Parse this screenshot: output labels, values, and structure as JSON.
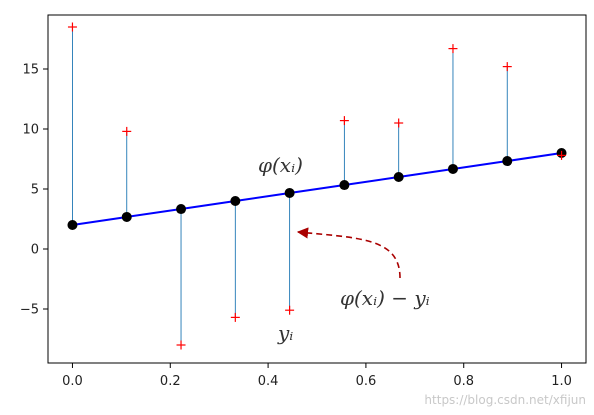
{
  "chart_data": {
    "type": "scatter",
    "x": [
      0.0,
      0.111,
      0.222,
      0.333,
      0.444,
      0.556,
      0.667,
      0.778,
      0.889,
      1.0
    ],
    "fit_values": [
      2.0,
      2.67,
      3.33,
      4.0,
      4.67,
      5.33,
      6.0,
      6.67,
      7.33,
      8.0
    ],
    "observed_values": [
      18.5,
      9.8,
      -8.0,
      -5.7,
      -5.1,
      10.7,
      10.5,
      16.7,
      15.2,
      7.8
    ],
    "xlim": [
      -0.05,
      1.05
    ],
    "ylim": [
      -9.5,
      19.5
    ],
    "xticks": [
      "0.0",
      "0.2",
      "0.4",
      "0.6",
      "0.8",
      "1.0"
    ],
    "yticks": [
      "−5",
      "0",
      "5",
      "10",
      "15"
    ],
    "grid": false,
    "colors": {
      "fit_line": "#0000ff",
      "fit_points": "#000000",
      "observed_points": "#ff0000",
      "residual_lines": "#1f77b4",
      "arrow": "#aa0000"
    },
    "annotations": {
      "fit_label": "φ(xᵢ)",
      "observed_label": "yᵢ",
      "residual_label": "φ(xᵢ) − yᵢ"
    }
  },
  "watermark": "https://blog.csdn.net/xfijun"
}
